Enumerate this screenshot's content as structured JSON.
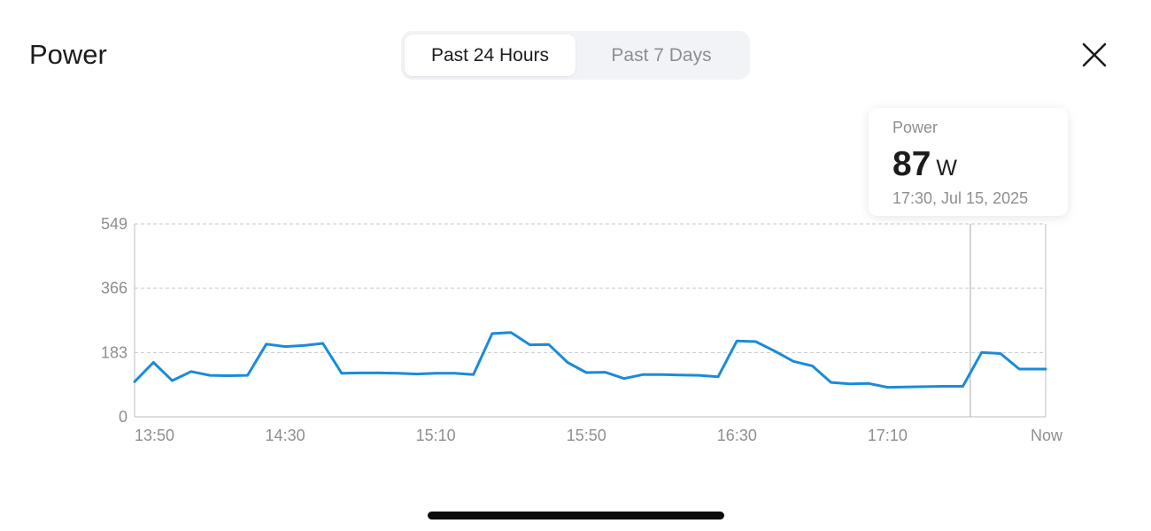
{
  "header": {
    "title": "Power",
    "tabs": [
      {
        "label": "Past 24 Hours",
        "active": true
      },
      {
        "label": "Past 7 Days",
        "active": false
      }
    ],
    "close_icon": "close-icon"
  },
  "tooltip": {
    "label": "Power",
    "value": "87",
    "unit": "W",
    "time": "17:30, Jul 15, 2025"
  },
  "colors": {
    "line": "#1a8bd8",
    "grid": "#c8c8cc",
    "axis": "#bdbdc2",
    "tick_text": "#8e8e93"
  },
  "chart_data": {
    "type": "line",
    "ylim": [
      0,
      549
    ],
    "yticks": [
      "549",
      "366",
      "183",
      "0"
    ],
    "ytick_values": [
      549,
      366,
      183,
      0
    ],
    "xticks": [
      "13:50",
      "14:30",
      "15:10",
      "15:50",
      "16:30",
      "17:10",
      "Now"
    ],
    "xtick_values": [
      0,
      40,
      80,
      120,
      160,
      200,
      242
    ],
    "selected_x": 222,
    "grid": true,
    "series": [
      {
        "x": [
          0,
          5,
          10,
          15,
          20,
          25,
          30,
          35,
          40,
          45,
          50,
          55,
          60,
          65,
          70,
          75,
          80,
          85,
          90,
          95,
          100,
          105,
          110,
          115,
          120,
          125,
          130,
          135,
          140,
          145,
          150,
          155,
          160,
          165,
          170,
          175,
          180,
          185,
          190,
          195,
          200,
          205,
          210,
          215,
          220,
          225,
          230,
          235,
          240,
          242
        ],
        "values": [
          100,
          155,
          103,
          129,
          118,
          117,
          118,
          207,
          200,
          203,
          209,
          124,
          125,
          125,
          124,
          122,
          124,
          124,
          120,
          237,
          240,
          205,
          206,
          155,
          126,
          127,
          109,
          120,
          120,
          119,
          118,
          114,
          216,
          214,
          187,
          158,
          145,
          98,
          94,
          95,
          84,
          85,
          86,
          87,
          87,
          183,
          180,
          136,
          136,
          136
        ]
      }
    ]
  }
}
